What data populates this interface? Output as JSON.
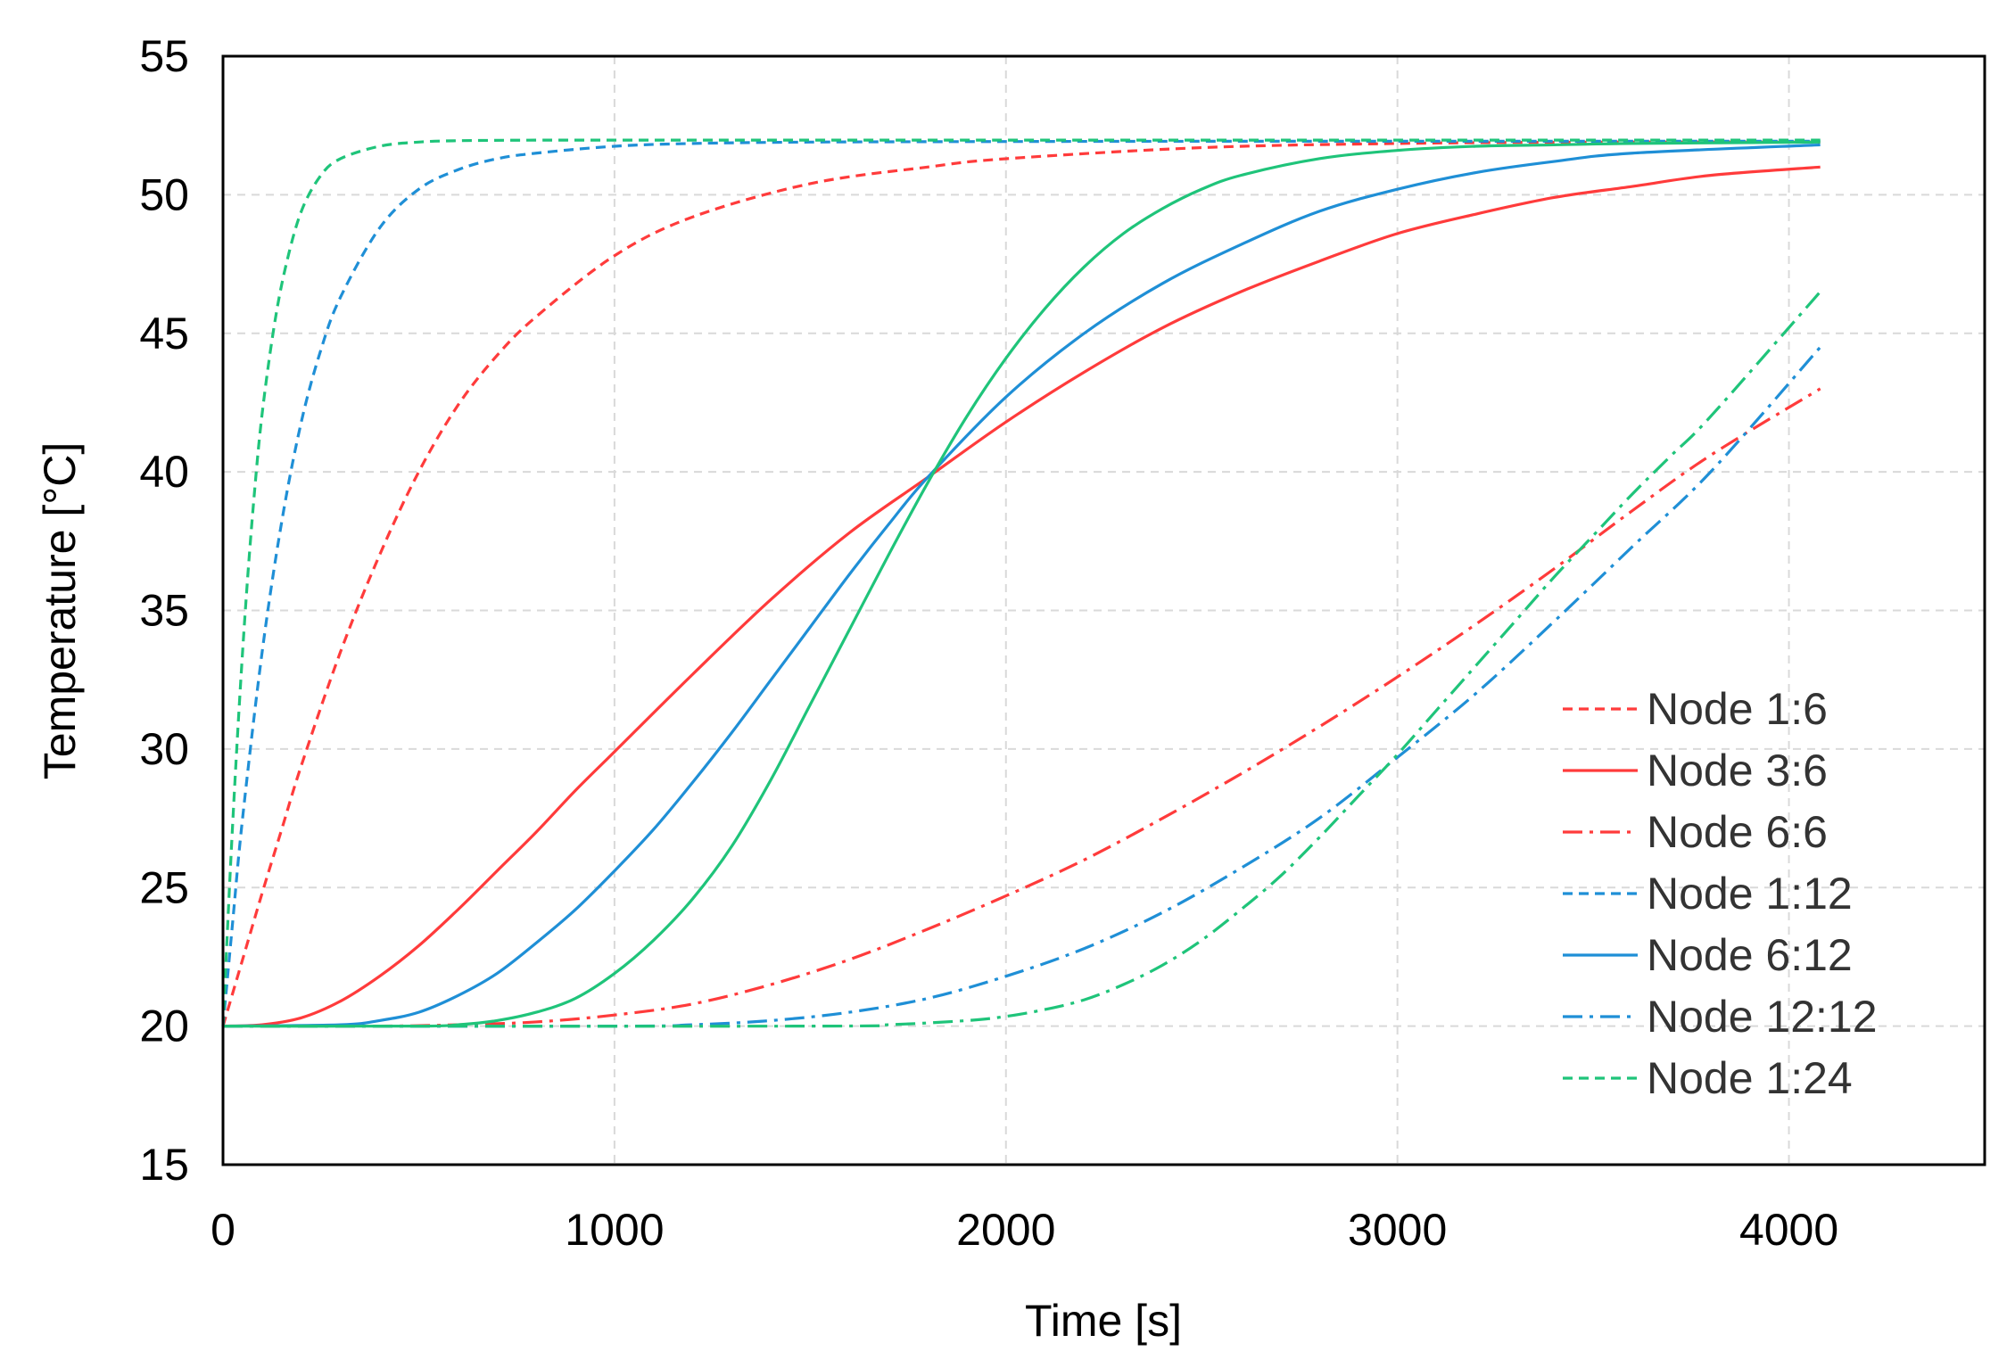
{
  "chart_data": {
    "type": "line",
    "title": "",
    "xlabel": "Time [s]",
    "ylabel": "Temperature [°C]",
    "xlim": [
      0,
      4500
    ],
    "ylim": [
      15,
      55
    ],
    "xticks": [
      0,
      1000,
      2000,
      3000,
      4000
    ],
    "yticks": [
      15,
      20,
      25,
      30,
      35,
      40,
      45,
      50,
      55
    ],
    "xtick_labels": [
      "0",
      "1000",
      "2000",
      "3000",
      "4000"
    ],
    "ytick_labels": [
      "15",
      "20",
      "25",
      "30",
      "35",
      "40",
      "45",
      "50",
      "55"
    ],
    "grid": true,
    "legend_position": "bottom-right",
    "series": [
      {
        "name": "Node 1:6",
        "color": "#ff3b3b",
        "dash": "dashed",
        "x": [
          0,
          50,
          100,
          150,
          200,
          300,
          400,
          500,
          600,
          700,
          800,
          1000,
          1200,
          1500,
          1800,
          2000,
          2500,
          3000,
          3500,
          4080
        ],
        "y": [
          20.0,
          22.4,
          24.8,
          27.1,
          29.4,
          33.5,
          37.0,
          40.0,
          42.4,
          44.2,
          45.6,
          47.8,
          49.2,
          50.4,
          51.0,
          51.3,
          51.7,
          51.85,
          51.9,
          51.9
        ]
      },
      {
        "name": "Node 3:6",
        "color": "#ff3b3b",
        "dash": "solid",
        "x": [
          0,
          100,
          200,
          300,
          400,
          500,
          600,
          700,
          800,
          900,
          1000,
          1200,
          1400,
          1600,
          1800,
          2000,
          2200,
          2400,
          2600,
          2800,
          3000,
          3200,
          3400,
          3600,
          3800,
          4080
        ],
        "y": [
          20.0,
          20.05,
          20.3,
          20.9,
          21.8,
          22.9,
          24.2,
          25.6,
          27.0,
          28.5,
          29.9,
          32.7,
          35.4,
          37.8,
          39.8,
          41.8,
          43.6,
          45.2,
          46.5,
          47.6,
          48.6,
          49.3,
          49.9,
          50.3,
          50.7,
          51.0
        ]
      },
      {
        "name": "Node 6:6",
        "color": "#ff3b3b",
        "dash": "dashdot",
        "x": [
          0,
          400,
          600,
          800,
          1000,
          1200,
          1400,
          1600,
          1800,
          2000,
          2200,
          2400,
          2600,
          2800,
          3000,
          3200,
          3400,
          3600,
          3800,
          4080
        ],
        "y": [
          20.0,
          20.0,
          20.05,
          20.15,
          20.4,
          20.8,
          21.5,
          22.4,
          23.5,
          24.7,
          26.0,
          27.5,
          29.1,
          30.8,
          32.6,
          34.5,
          36.5,
          38.6,
          40.6,
          43.0
        ]
      },
      {
        "name": "Node 1:12",
        "color": "#1f8fd6",
        "dash": "dashed",
        "x": [
          0,
          25,
          50,
          100,
          150,
          200,
          250,
          300,
          400,
          500,
          600,
          700,
          800,
          1000,
          1200,
          1500,
          2000,
          2500,
          3000,
          4080
        ],
        "y": [
          20.0,
          23.8,
          27.5,
          33.5,
          38.2,
          41.8,
          44.4,
          46.3,
          48.8,
          50.2,
          50.9,
          51.3,
          51.5,
          51.75,
          51.85,
          51.9,
          51.92,
          51.93,
          51.93,
          51.93
        ]
      },
      {
        "name": "Node 6:12",
        "color": "#1f8fd6",
        "dash": "solid",
        "x": [
          0,
          300,
          400,
          500,
          600,
          700,
          800,
          900,
          1000,
          1100,
          1200,
          1300,
          1400,
          1500,
          1600,
          1700,
          1800,
          2000,
          2200,
          2400,
          2600,
          2800,
          3000,
          3200,
          3400,
          3600,
          4080
        ],
        "y": [
          20.0,
          20.05,
          20.2,
          20.5,
          21.1,
          21.9,
          23.0,
          24.2,
          25.6,
          27.1,
          28.8,
          30.6,
          32.5,
          34.4,
          36.3,
          38.1,
          39.8,
          42.7,
          45.0,
          46.8,
          48.2,
          49.4,
          50.2,
          50.8,
          51.2,
          51.5,
          51.8
        ]
      },
      {
        "name": "Node 12:12",
        "color": "#1f8fd6",
        "dash": "dashdot",
        "x": [
          0,
          1000,
          1200,
          1400,
          1600,
          1800,
          2000,
          2200,
          2400,
          2600,
          2800,
          3000,
          3200,
          3400,
          3600,
          3800,
          4080
        ],
        "y": [
          20.0,
          20.0,
          20.05,
          20.2,
          20.5,
          21.0,
          21.8,
          22.8,
          24.1,
          25.7,
          27.5,
          29.7,
          32.0,
          34.6,
          37.3,
          40.0,
          44.5
        ]
      },
      {
        "name": "Node 1:24",
        "color": "#1fc47a",
        "dash": "dashed",
        "x": [
          0,
          20,
          40,
          60,
          80,
          100,
          130,
          160,
          200,
          250,
          300,
          400,
          500,
          600,
          800,
          1000,
          2000,
          3000,
          4080
        ],
        "y": [
          20.0,
          26.0,
          31.2,
          35.6,
          39.2,
          42.1,
          45.2,
          47.4,
          49.4,
          50.7,
          51.3,
          51.75,
          51.9,
          51.95,
          51.97,
          51.97,
          51.97,
          51.97,
          51.97
        ]
      },
      {
        "name": "",
        "color": "#1fc47a",
        "dash": "solid",
        "x": [
          0,
          500,
          600,
          700,
          800,
          900,
          1000,
          1100,
          1200,
          1300,
          1400,
          1500,
          1600,
          1700,
          1800,
          1900,
          2000,
          2100,
          2200,
          2300,
          2400,
          2500,
          2600,
          2800,
          3000,
          3200,
          3400,
          3600,
          4080
        ],
        "y": [
          20.0,
          20.0,
          20.05,
          20.2,
          20.5,
          21.0,
          21.9,
          23.1,
          24.6,
          26.5,
          28.9,
          31.6,
          34.3,
          37.0,
          39.6,
          42.0,
          44.1,
          45.9,
          47.4,
          48.6,
          49.5,
          50.2,
          50.7,
          51.3,
          51.6,
          51.75,
          51.8,
          51.85,
          51.9
        ]
      },
      {
        "name": "",
        "color": "#1fc47a",
        "dash": "dashdot",
        "x": [
          0,
          1500,
          1700,
          1900,
          2000,
          2100,
          2200,
          2300,
          2400,
          2500,
          2600,
          2700,
          2800,
          2900,
          3000,
          3100,
          3200,
          3300,
          3400,
          3500,
          3600,
          3700,
          3800,
          4080
        ],
        "y": [
          20.0,
          20.0,
          20.05,
          20.2,
          20.35,
          20.6,
          20.95,
          21.5,
          22.2,
          23.1,
          24.2,
          25.4,
          26.8,
          28.3,
          29.8,
          31.4,
          33.0,
          34.6,
          36.2,
          37.7,
          39.2,
          40.6,
          42.0,
          46.5
        ]
      }
    ]
  }
}
